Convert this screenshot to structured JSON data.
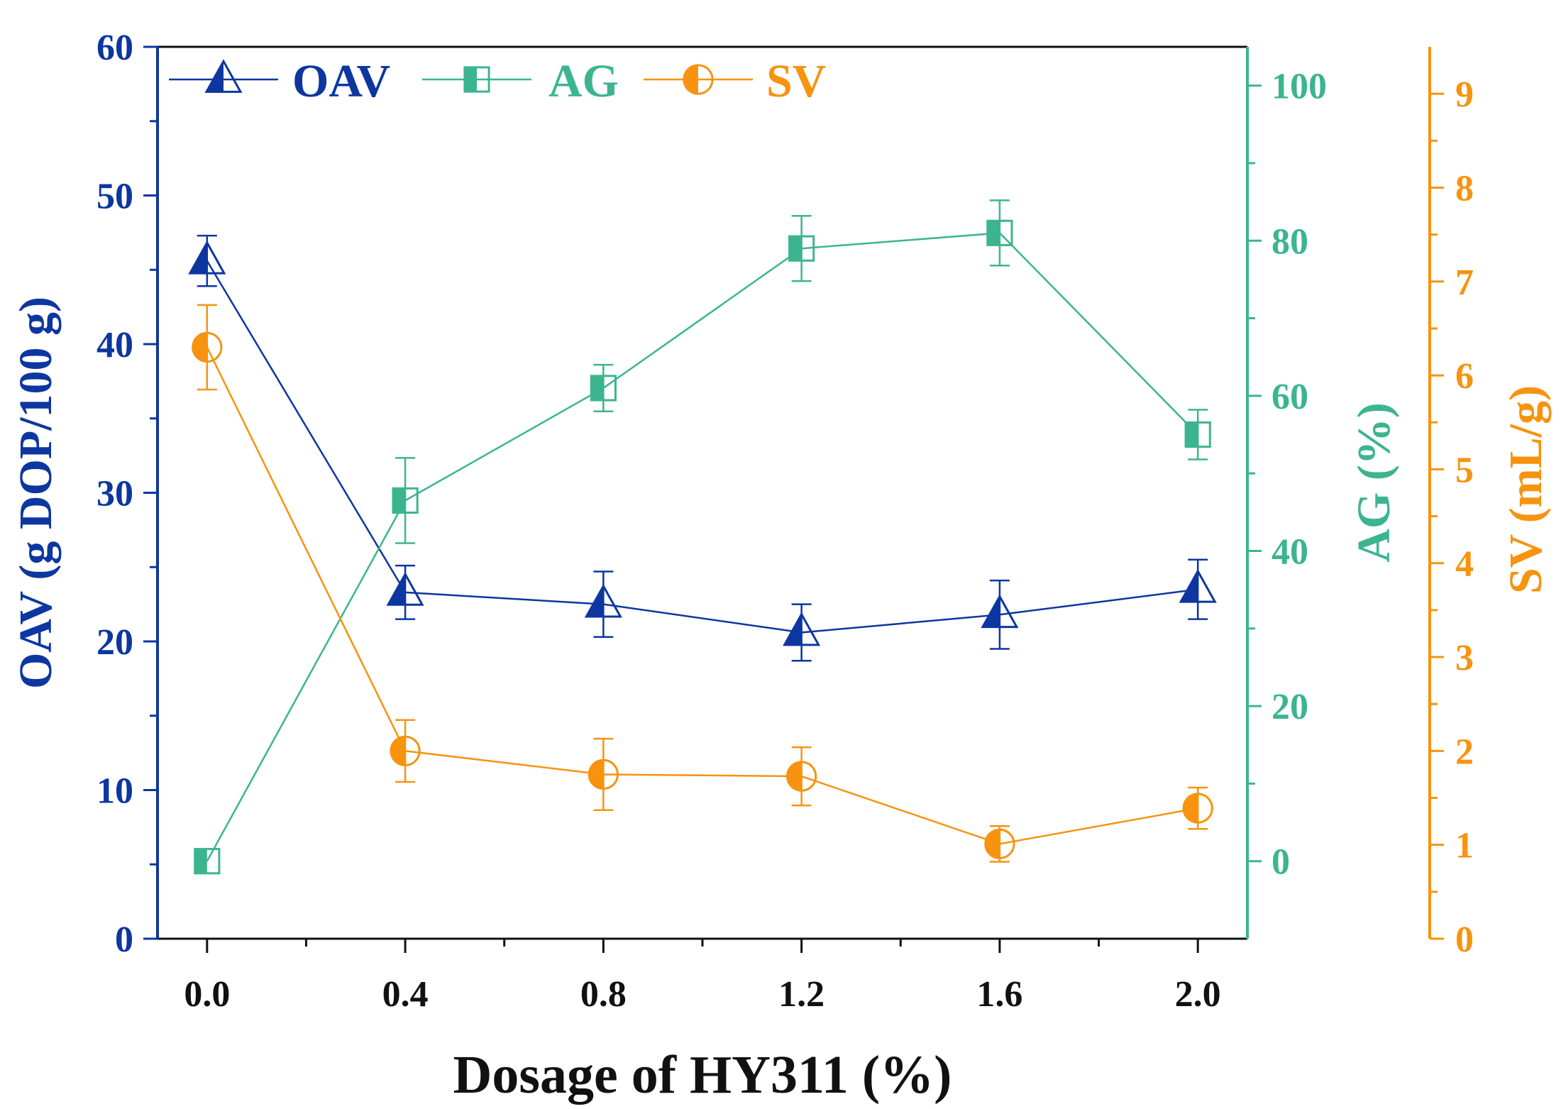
{
  "chart_data": {
    "type": "line",
    "xlabel": "Dosage of HY311 (%)",
    "x": [
      0.0,
      0.4,
      0.8,
      1.2,
      1.6,
      2.0
    ],
    "x_tick_labels": [
      "0.0",
      "0.4",
      "0.8",
      "1.2",
      "1.6",
      "2.0"
    ],
    "xlim": [
      -0.1,
      2.1
    ],
    "series": [
      {
        "name": "OAV",
        "axis": "left",
        "color": "#0d36a0",
        "marker": "triangle",
        "values": [
          45.6,
          23.3,
          22.5,
          20.6,
          21.8,
          23.5
        ],
        "errors": [
          1.7,
          1.8,
          2.2,
          1.9,
          2.3,
          2.0
        ]
      },
      {
        "name": "AG",
        "axis": "right1",
        "color": "#3cb58f",
        "marker": "square",
        "values": [
          0,
          46.5,
          61,
          79,
          81,
          55
        ],
        "errors": [
          0,
          5.5,
          3,
          4.2,
          4.2,
          3.2
        ]
      },
      {
        "name": "SV",
        "axis": "right2",
        "color": "#f7930f",
        "marker": "circle",
        "values": [
          6.3,
          2.0,
          1.75,
          1.73,
          1.01,
          1.39
        ],
        "errors": [
          0.45,
          0.33,
          0.38,
          0.31,
          0.19,
          0.22
        ]
      }
    ],
    "axes": {
      "left": {
        "label": "OAV (g DOP/100 g)",
        "color": "#0d36a0",
        "range": [
          0,
          60
        ],
        "ticks": [
          0,
          10,
          20,
          30,
          40,
          50,
          60
        ],
        "tick_labels": [
          "0",
          "10",
          "20",
          "30",
          "40",
          "50",
          "60"
        ]
      },
      "right1": {
        "label": "AG (%)",
        "color": "#3cb58f",
        "range": [
          -10,
          105
        ],
        "ticks": [
          0,
          20,
          40,
          60,
          80,
          100
        ],
        "tick_labels": [
          "0",
          "20",
          "40",
          "60",
          "80",
          "100"
        ]
      },
      "right2": {
        "label": "SV (mL/g)",
        "color": "#f7930f",
        "range": [
          0,
          9.5
        ],
        "ticks": [
          0,
          1,
          2,
          3,
          4,
          5,
          6,
          7,
          8,
          9
        ],
        "tick_labels": [
          "0",
          "1",
          "2",
          "3",
          "4",
          "5",
          "6",
          "7",
          "8",
          "9"
        ]
      }
    },
    "legend": {
      "placement": "top-left",
      "orientation": "horizontal",
      "entries": [
        "OAV",
        "AG",
        "SV"
      ]
    }
  }
}
